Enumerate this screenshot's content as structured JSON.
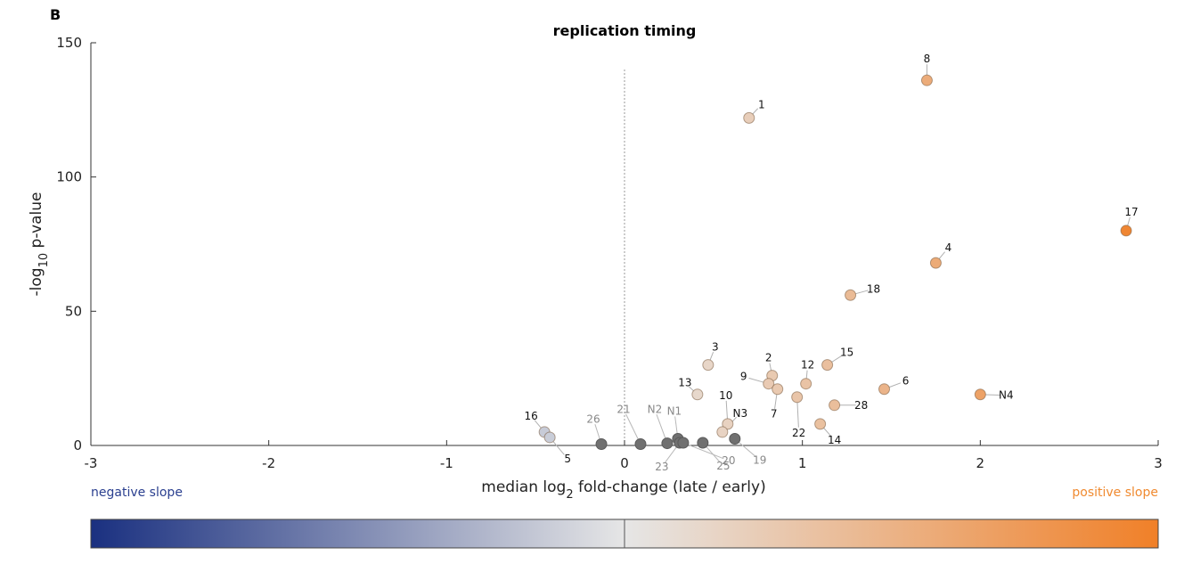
{
  "panel_letter": "B",
  "colors": {
    "negative": "#1a3080",
    "neutral": "#e6e6e6",
    "positive": "#f08028",
    "insignificant": "#707070",
    "negative_label": "#2a3f8f",
    "positive_label": "#f08a30"
  },
  "colorbar": {
    "left_label": "negative slope",
    "right_label": "positive slope"
  },
  "chart_data": {
    "type": "scatter",
    "title": "replication timing",
    "xlabel": {
      "pre": "median log",
      "sub": "2",
      "post": " fold-change (late / early)"
    },
    "ylabel": {
      "pre": "-log",
      "sub": "10",
      "post": " p-value"
    },
    "xlim": [
      -3,
      3
    ],
    "ylim": [
      0,
      150
    ],
    "xticks": [
      -3,
      -2,
      -1,
      0,
      1,
      2,
      3
    ],
    "yticks": [
      0,
      50,
      100,
      150
    ],
    "zero_line": true,
    "points": [
      {
        "label": "8",
        "x": 1.7,
        "y": 136,
        "sig": true
      },
      {
        "label": "1",
        "x": 0.7,
        "y": 122,
        "sig": true
      },
      {
        "label": "17",
        "x": 2.82,
        "y": 80,
        "sig": true
      },
      {
        "label": "4",
        "x": 1.75,
        "y": 68,
        "sig": true
      },
      {
        "label": "18",
        "x": 1.27,
        "y": 56,
        "sig": true
      },
      {
        "label": "3",
        "x": 0.47,
        "y": 30,
        "sig": true
      },
      {
        "label": "15",
        "x": 1.14,
        "y": 30,
        "sig": true
      },
      {
        "label": "2",
        "x": 0.83,
        "y": 26,
        "sig": true
      },
      {
        "label": "12",
        "x": 1.02,
        "y": 23,
        "sig": true
      },
      {
        "label": "9",
        "x": 0.81,
        "y": 23,
        "sig": true
      },
      {
        "label": "7",
        "x": 0.86,
        "y": 21,
        "sig": true
      },
      {
        "label": "6",
        "x": 1.46,
        "y": 21,
        "sig": true
      },
      {
        "label": "N4",
        "x": 2.0,
        "y": 19,
        "sig": true
      },
      {
        "label": "13",
        "x": 0.41,
        "y": 19,
        "sig": true
      },
      {
        "label": "22",
        "x": 0.97,
        "y": 18,
        "sig": true
      },
      {
        "label": "28",
        "x": 1.18,
        "y": 15,
        "sig": true
      },
      {
        "label": "10",
        "x": 0.58,
        "y": 8,
        "sig": true
      },
      {
        "label": "N3",
        "x": 0.55,
        "y": 5,
        "sig": true
      },
      {
        "label": "14",
        "x": 1.1,
        "y": 8,
        "sig": true
      },
      {
        "label": "16",
        "x": -0.45,
        "y": 5,
        "sig": true
      },
      {
        "label": "5",
        "x": -0.42,
        "y": 3,
        "sig": true
      },
      {
        "label": "26",
        "x": -0.13,
        "y": 0.5,
        "sig": false
      },
      {
        "label": "21",
        "x": 0.09,
        "y": 0.5,
        "sig": false
      },
      {
        "label": "N2",
        "x": 0.24,
        "y": 0.8,
        "sig": false
      },
      {
        "label": "N1",
        "x": 0.3,
        "y": 2.5,
        "sig": false
      },
      {
        "label": "23",
        "x": 0.31,
        "y": 1.0,
        "sig": false
      },
      {
        "label": "25",
        "x": 0.44,
        "y": 1.0,
        "sig": false
      },
      {
        "label": "19",
        "x": 0.62,
        "y": 2.5,
        "sig": false
      },
      {
        "label": "20",
        "x": 0.33,
        "y": 1.0,
        "sig": false
      }
    ]
  }
}
